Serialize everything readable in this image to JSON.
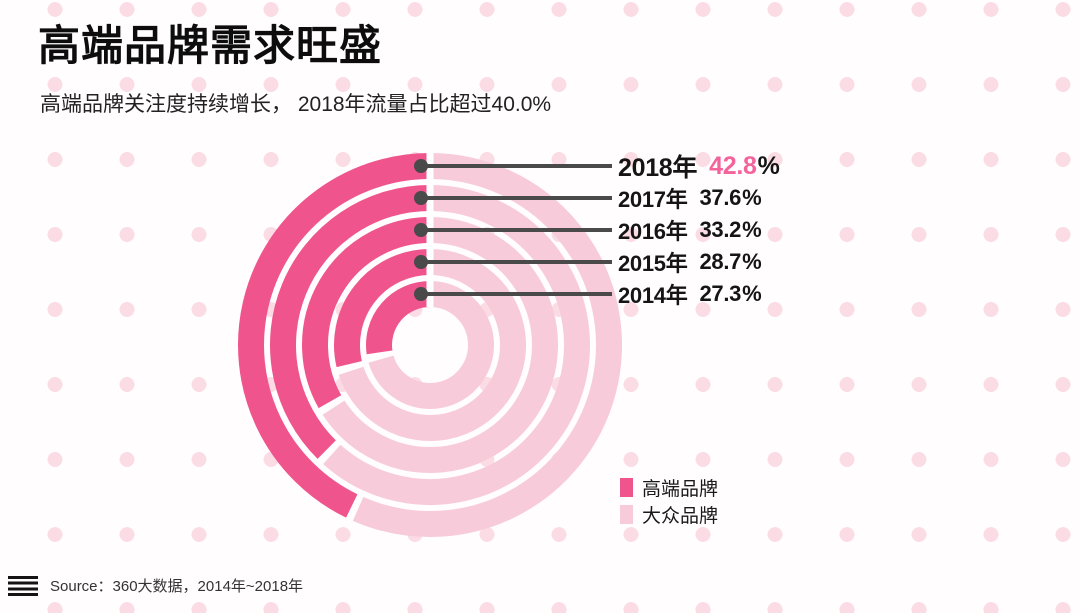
{
  "page": {
    "title": "高端品牌需求旺盛",
    "subtitle": "高端品牌关注度持续增长， 2018年流量占比超过40.0%",
    "background_dot_color": "#fbdce4"
  },
  "chart_data": {
    "type": "donut",
    "variant": "concentric-rings",
    "title": "高端品牌需求旺盛",
    "unit": "%",
    "start_angle": "top",
    "direction": "counterclockwise",
    "grid": false,
    "legend_position": "bottom-right",
    "categories": [
      "2014年",
      "2015年",
      "2016年",
      "2017年",
      "2018年"
    ],
    "series": [
      {
        "name": "高端品牌",
        "color": "#f0548c",
        "values": [
          27.3,
          28.7,
          33.2,
          37.6,
          42.8
        ]
      },
      {
        "name": "大众品牌",
        "color": "#f8cbda",
        "values": [
          72.7,
          71.3,
          66.8,
          62.4,
          57.2
        ]
      }
    ],
    "rings": [
      {
        "year": "2014年",
        "value": "27.3",
        "highlight": false
      },
      {
        "year": "2015年",
        "value": "28.7",
        "highlight": false
      },
      {
        "year": "2016年",
        "value": "33.2",
        "highlight": false
      },
      {
        "year": "2017年",
        "value": "37.6",
        "highlight": false
      },
      {
        "year": "2018年",
        "value": "42.8",
        "highlight": true
      }
    ],
    "highlight_value_color": "#f4639b",
    "connector_color": "#4a4a4a"
  },
  "source": {
    "label": "Source：360大数据，2014年~2018年"
  }
}
